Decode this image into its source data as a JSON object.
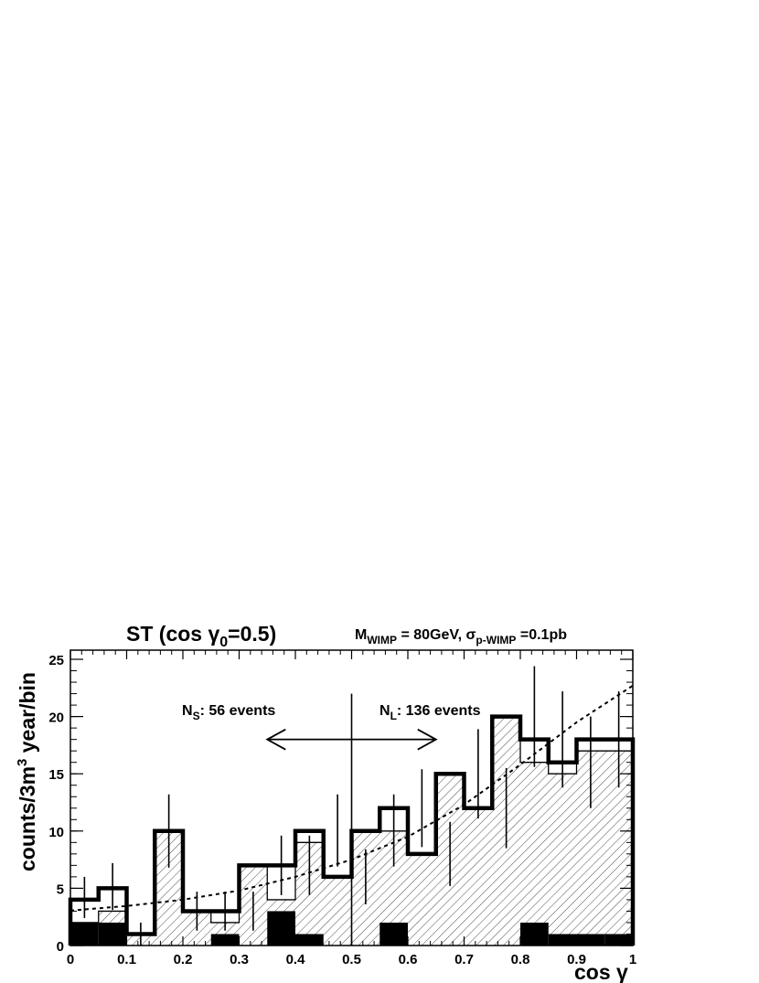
{
  "chart_data": {
    "type": "bar",
    "title": "ST (cos γ",
    "title_sub": "0",
    "title_suffix": "=0.5)",
    "params": {
      "m_label": "M",
      "m_sub": "WIMP",
      "m_value": " = 80GeV, ",
      "sigma_label": "σ",
      "sigma_sub": "p-WIMP",
      "sigma_value": " =0.1pb"
    },
    "xlabel": "cos γ",
    "ylabel": {
      "main": "counts/3m",
      "sup": "3",
      "rest": " year/bin"
    },
    "xlim": [
      0,
      1
    ],
    "ylim": [
      0,
      25.8
    ],
    "x_ticks": [
      "0",
      "0.1",
      "0.2",
      "0.3",
      "0.4",
      "0.5",
      "0.6",
      "0.7",
      "0.8",
      "0.9",
      "1"
    ],
    "y_ticks": [
      "0",
      "5",
      "10",
      "15",
      "20",
      "25"
    ],
    "bin_edges": [
      0,
      0.05,
      0.1,
      0.15,
      0.2,
      0.25,
      0.3,
      0.35,
      0.4,
      0.45,
      0.5,
      0.55,
      0.6,
      0.65,
      0.7,
      0.75,
      0.8,
      0.85,
      0.9,
      0.95,
      1.0
    ],
    "series": [
      {
        "name": "total",
        "style": "thick",
        "values": [
          4,
          5,
          1,
          10,
          3,
          3,
          7,
          7,
          10,
          6,
          10,
          12,
          8,
          15,
          12,
          20,
          18,
          16,
          18,
          18
        ]
      },
      {
        "name": "signal",
        "style": "hatched",
        "values": [
          2,
          3,
          1,
          10,
          3,
          2,
          7,
          4,
          9,
          6,
          10,
          10,
          8,
          15,
          12,
          20,
          16,
          15,
          17,
          17
        ]
      },
      {
        "name": "background",
        "style": "filled",
        "values": [
          2,
          2,
          0,
          0,
          0,
          1,
          0,
          3,
          1,
          0,
          0,
          2,
          0,
          0,
          0,
          0,
          2,
          1,
          1,
          1
        ]
      }
    ],
    "error_bars": [
      {
        "x": 0.025,
        "low": 2.4,
        "high": 6.0
      },
      {
        "x": 0.075,
        "low": 3.1,
        "high": 7.2
      },
      {
        "x": 0.125,
        "low": 0.0,
        "high": 2.0
      },
      {
        "x": 0.175,
        "low": 6.8,
        "high": 13.2
      },
      {
        "x": 0.225,
        "low": 1.3,
        "high": 4.7
      },
      {
        "x": 0.275,
        "low": 1.3,
        "high": 4.7
      },
      {
        "x": 0.325,
        "low": 1.3,
        "high": 4.7
      },
      {
        "x": 0.375,
        "low": 4.4,
        "high": 9.6
      },
      {
        "x": 0.425,
        "low": 4.4,
        "high": 9.6
      },
      {
        "x": 0.475,
        "low": 6.9,
        "high": 13.2
      },
      {
        "x": 0.5,
        "low": 0,
        "high": 22.0
      },
      {
        "x": 0.525,
        "low": 3.6,
        "high": 8.4
      },
      {
        "x": 0.575,
        "low": 6.9,
        "high": 13.2
      },
      {
        "x": 0.625,
        "low": 8.6,
        "high": 15.4
      },
      {
        "x": 0.675,
        "low": 5.2,
        "high": 10.8
      },
      {
        "x": 0.725,
        "low": 11.1,
        "high": 18.9
      },
      {
        "x": 0.775,
        "low": 8.5,
        "high": 15.5
      },
      {
        "x": 0.825,
        "low": 15.6,
        "high": 24.4
      },
      {
        "x": 0.875,
        "low": 13.8,
        "high": 22.2
      },
      {
        "x": 0.925,
        "low": 12.0,
        "high": 20.0
      },
      {
        "x": 0.975,
        "low": 13.8,
        "high": 22.2
      }
    ],
    "fit_curve": {
      "style": "dashed",
      "points": [
        [
          0.0,
          3.05
        ],
        [
          0.1,
          3.45
        ],
        [
          0.2,
          4.0
        ],
        [
          0.3,
          4.8
        ],
        [
          0.4,
          6.0
        ],
        [
          0.5,
          7.5
        ],
        [
          0.6,
          9.5
        ],
        [
          0.7,
          12.3
        ],
        [
          0.8,
          15.8
        ],
        [
          0.9,
          19.5
        ],
        [
          1.0,
          22.7
        ]
      ]
    },
    "annotations": {
      "ns_label": "N",
      "ns_sub": "S",
      "ns_text": ": 56 events",
      "nl_label": "N",
      "nl_sub": "L",
      "nl_text": ": 136 events",
      "arrow_from": 0.35,
      "arrow_to": 0.65,
      "arrow_y": 18
    },
    "grid": false,
    "legend": "none"
  }
}
